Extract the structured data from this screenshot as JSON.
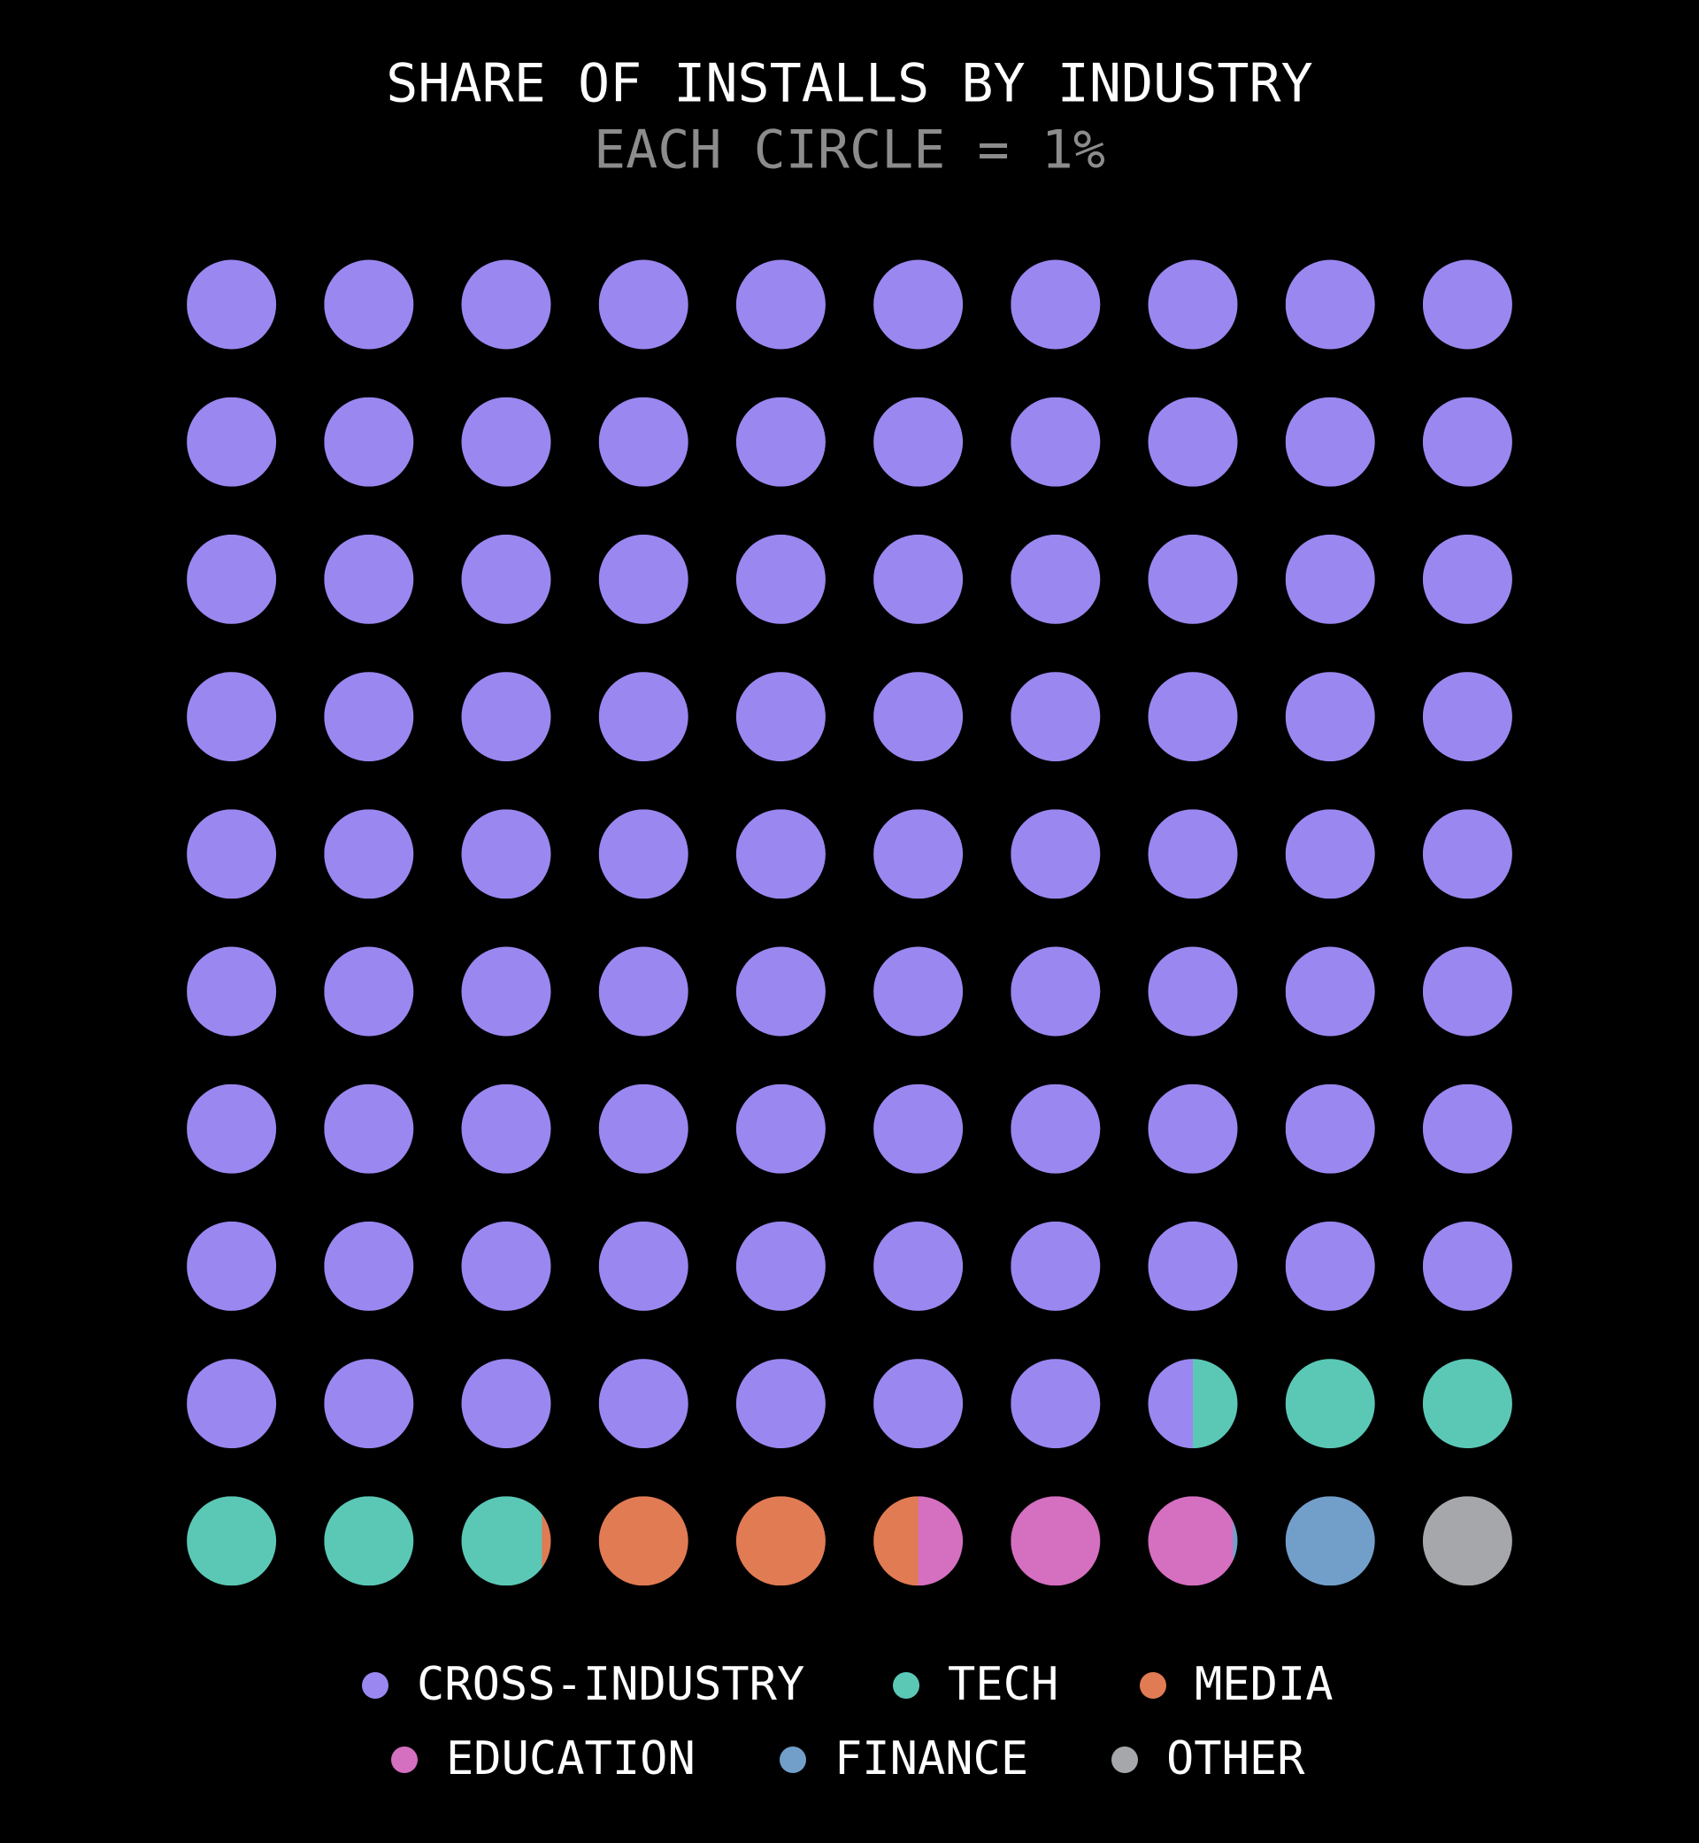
{
  "chart_data": {
    "type": "waffle",
    "title": "SHARE OF INSTALLS BY INDUSTRY",
    "subtitle": "EACH CIRCLE = 1%",
    "series": [
      {
        "name": "CROSS-INDUSTRY",
        "color": "#9b87f0",
        "values": [
          87.5
        ]
      },
      {
        "name": "TECH",
        "color": "#5bc8b6",
        "values": [
          5.4
        ]
      },
      {
        "name": "MEDIA",
        "color": "#e07b54",
        "values": [
          2.6
        ]
      },
      {
        "name": "EDUCATION",
        "color": "#d56fc0",
        "values": [
          2.45
        ]
      },
      {
        "name": "FINANCE",
        "color": "#729fca",
        "values": [
          1.05
        ]
      },
      {
        "name": "OTHER",
        "color": "#a6a7aa",
        "values": [
          1
        ]
      }
    ]
  }
}
